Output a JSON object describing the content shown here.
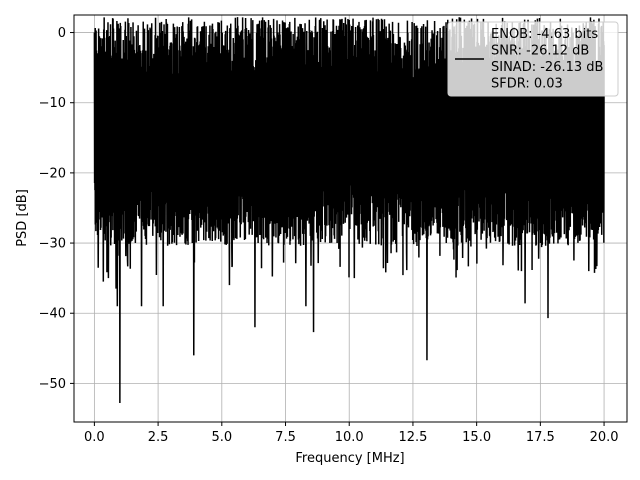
{
  "chart_data": {
    "type": "line",
    "xlabel": "Frequency [MHz]",
    "ylabel": "PSD [dB]",
    "xlim": [
      -0.8,
      20.9
    ],
    "ylim": [
      -55.5,
      2.5
    ],
    "xticks": [
      0.0,
      2.5,
      5.0,
      7.5,
      10.0,
      12.5,
      15.0,
      17.5,
      20.0
    ],
    "xtick_labels": [
      "0.0",
      "2.5",
      "5.0",
      "7.5",
      "10.0",
      "12.5",
      "15.0",
      "17.5",
      "20.0"
    ],
    "yticks": [
      0,
      -10,
      -20,
      -30,
      -40,
      -50
    ],
    "ytick_labels": [
      "0",
      "−10",
      "−20",
      "−30",
      "−40",
      "−50"
    ],
    "grid": true,
    "legend_position": "top-right",
    "series": [
      {
        "name": "ENOB: -4.63 bits\nSNR: -26.12 dB\nSINAD: -26.13 dB\nSFDR: 0.03",
        "color": "#000000",
        "x_range": [
          0,
          20
        ],
        "envelope_top": -5,
        "envelope_bottom": -25,
        "dips": [
          {
            "x": 0.35,
            "y": -35.5
          },
          {
            "x": 0.55,
            "y": -35.0
          },
          {
            "x": 0.85,
            "y": -36.5
          },
          {
            "x": 0.9,
            "y": -39.0
          },
          {
            "x": 1.0,
            "y": -52.8
          },
          {
            "x": 1.85,
            "y": -39.0
          },
          {
            "x": 2.7,
            "y": -39.0
          },
          {
            "x": 3.9,
            "y": -46.0
          },
          {
            "x": 5.3,
            "y": -36.0
          },
          {
            "x": 6.3,
            "y": -42.0
          },
          {
            "x": 8.3,
            "y": -39.0
          },
          {
            "x": 8.6,
            "y": -42.7
          },
          {
            "x": 10.2,
            "y": -35.0
          },
          {
            "x": 13.05,
            "y": -46.7
          },
          {
            "x": 16.9,
            "y": -38.6
          },
          {
            "x": 17.8,
            "y": -40.7
          },
          {
            "x": 19.4,
            "y": -34.0
          }
        ],
        "peaks": [
          {
            "x": 0.0,
            "y": 0.0
          },
          {
            "x": 7.2,
            "y": 0.0
          },
          {
            "x": 9.8,
            "y": -0.5
          },
          {
            "x": 14.6,
            "y": -1.0
          }
        ]
      }
    ]
  }
}
